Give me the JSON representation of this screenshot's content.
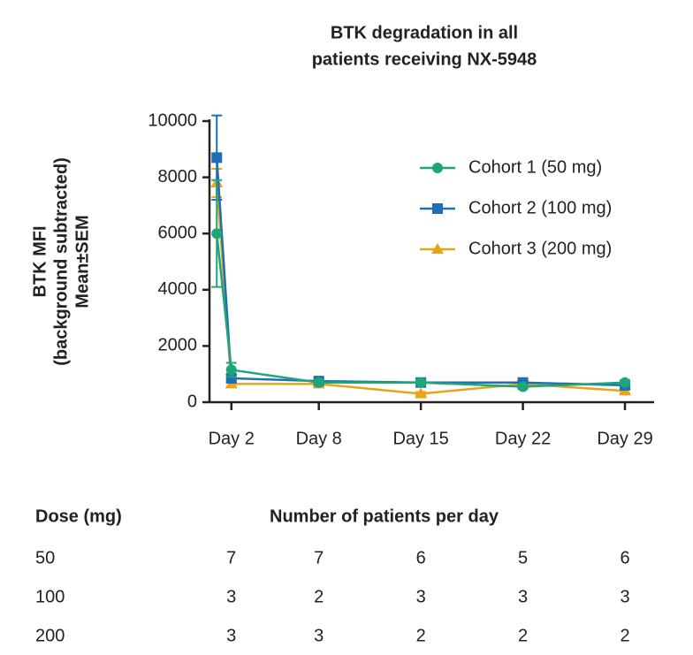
{
  "chart_data": {
    "type": "line",
    "title": [
      "BTK degradation in all",
      "patients receiving NX-5948"
    ],
    "y_label": [
      "BTK MFI",
      "(background subtracted)",
      "Mean±SEM"
    ],
    "x": [
      1,
      2,
      8,
      15,
      22,
      29
    ],
    "xlim": [
      0.5,
      31
    ],
    "xticks": [
      {
        "value": 2,
        "label": "Day 2"
      },
      {
        "value": 8,
        "label": "Day 8"
      },
      {
        "value": 15,
        "label": "Day 15"
      },
      {
        "value": 22,
        "label": "Day 22"
      },
      {
        "value": 29,
        "label": "Day 29"
      }
    ],
    "ylim": [
      0,
      10000
    ],
    "yticks": [
      0,
      2000,
      4000,
      6000,
      8000,
      10000
    ],
    "legend": "upper-right",
    "series": [
      {
        "name": "Cohort 1 (50 mg)",
        "color": "#1fa57a",
        "marker": "circle",
        "values": [
          6000,
          1150,
          700,
          700,
          550,
          700
        ],
        "errors": [
          1900,
          250,
          80,
          80,
          80,
          80
        ]
      },
      {
        "name": "Cohort 2 (100 mg)",
        "color": "#1f6fb4",
        "marker": "square",
        "values": [
          8700,
          850,
          750,
          700,
          700,
          600
        ],
        "errors": [
          1500,
          150,
          80,
          80,
          80,
          80
        ]
      },
      {
        "name": "Cohort 3 (200 mg)",
        "color": "#e8a317",
        "marker": "triangle",
        "values": [
          7800,
          650,
          650,
          300,
          650,
          400
        ],
        "errors": [
          500,
          100,
          80,
          60,
          80,
          80
        ]
      }
    ]
  },
  "table": {
    "headers": [
      "Dose (mg)",
      "Number of patients per day"
    ],
    "rows": [
      [
        50,
        7,
        7,
        6,
        5,
        6
      ],
      [
        100,
        3,
        2,
        3,
        3,
        3
      ],
      [
        200,
        3,
        3,
        2,
        2,
        2
      ]
    ]
  }
}
